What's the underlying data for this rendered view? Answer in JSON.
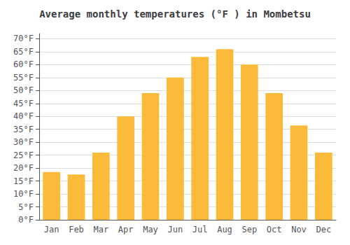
{
  "chart_data": {
    "type": "bar",
    "title": "Average monthly temperatures (°F ) in Mombetsu",
    "categories": [
      "Jan",
      "Feb",
      "Mar",
      "Apr",
      "May",
      "Jun",
      "Jul",
      "Aug",
      "Sep",
      "Oct",
      "Nov",
      "Dec"
    ],
    "values": [
      18.5,
      17.5,
      26.0,
      40.0,
      49.0,
      55.0,
      63.0,
      66.0,
      60.0,
      49.0,
      36.5,
      26.0
    ],
    "color": "#FBBA3A",
    "ylim": [
      0,
      72
    ],
    "yticks": [
      {
        "value": 0,
        "label": "0°F"
      },
      {
        "value": 5,
        "label": "5°F"
      },
      {
        "value": 10,
        "label": "10°F"
      },
      {
        "value": 15,
        "label": "15°F"
      },
      {
        "value": 20,
        "label": "20°F"
      },
      {
        "value": 25,
        "label": "25°F"
      },
      {
        "value": 30,
        "label": "30°F"
      },
      {
        "value": 35,
        "label": "35°F"
      },
      {
        "value": 40,
        "label": "40°F"
      },
      {
        "value": 45,
        "label": "45°F"
      },
      {
        "value": 50,
        "label": "50°F"
      },
      {
        "value": 55,
        "label": "55°F"
      },
      {
        "value": 60,
        "label": "60°F"
      },
      {
        "value": 65,
        "label": "65°F"
      },
      {
        "value": 70,
        "label": "70°F"
      }
    ],
    "grid": true
  }
}
